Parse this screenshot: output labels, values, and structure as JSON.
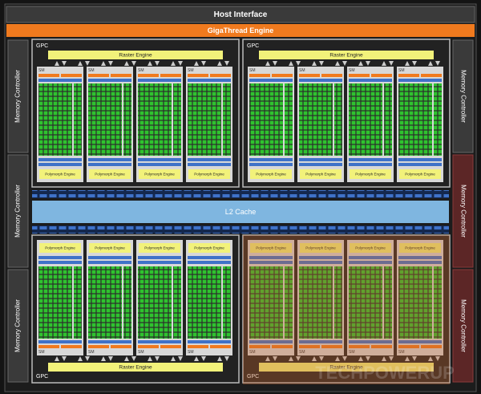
{
  "header": {
    "title": "Host Interface",
    "subtitle": "GigaThread Engine"
  },
  "gpcs": [
    {
      "label": "GPC",
      "engine": "Raster Engine",
      "sms": [
        {
          "label": "SM",
          "engine": "Polymorph Engine"
        },
        {
          "label": "SM",
          "engine": "Polymorph Engine"
        },
        {
          "label": "SM",
          "engine": "Polymorph Engine"
        },
        {
          "label": "SM",
          "engine": "Polymorph Engine"
        }
      ]
    },
    {
      "label": "GPC",
      "engine": "Raster Engine",
      "sms": [
        {
          "label": "SM",
          "engine": "Polymorph Engine"
        },
        {
          "label": "SM",
          "engine": "Polymorph Engine"
        },
        {
          "label": "SM",
          "engine": "Polymorph Engine"
        },
        {
          "label": "SM",
          "engine": "Polymorph Engine"
        }
      ]
    },
    {
      "label": "GPC",
      "engine": "Raster Engine",
      "sms": [
        {
          "label": "SM",
          "engine": "Polymorph Engine"
        },
        {
          "label": "SM",
          "engine": "Polymorph Engine"
        },
        {
          "label": "SM",
          "engine": "Polymorph Engine"
        },
        {
          "label": "SM",
          "engine": "Polymorph Engine"
        }
      ]
    },
    {
      "label": "GPC",
      "engine": "Raster Engine",
      "sms": [
        {
          "label": "SM",
          "engine": "Polymorph Engine"
        },
        {
          "label": "SM",
          "engine": "Polymorph Engine"
        },
        {
          "label": "SM",
          "engine": "Polymorph Engine"
        },
        {
          "label": "SM",
          "engine": "Polymorph Engine"
        }
      ]
    }
  ],
  "cache": "L2 Cache",
  "memory_controllers": [
    "Memory Controller",
    "Memory Controller",
    "Memory Controller",
    "Memory Controller",
    "Memory Controller",
    "Memory Controller"
  ],
  "watermark": "TECHPOWERUP"
}
